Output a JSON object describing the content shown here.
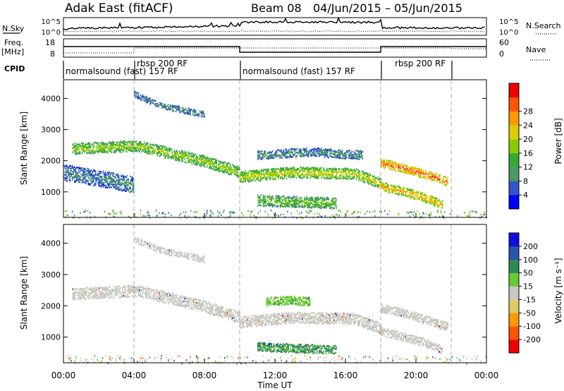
{
  "header": {
    "station": "Adak East (fitACF)",
    "beam": "Beam 08",
    "date_range": "04/Jun/2015 – 05/Jun/2015"
  },
  "noise_panel": {
    "left_label": "N.Sky",
    "right_label": "N.Search",
    "left_ticks": [
      "10^5",
      "10^0"
    ],
    "right_ticks": [
      "10^5",
      "10^0"
    ]
  },
  "freq_panel": {
    "left_label_1": "Freq.",
    "left_label_2": "[MHz]",
    "left_ticks": [
      "18",
      "8"
    ],
    "right_label": "Nave",
    "right_ticks": [
      "60",
      "0"
    ]
  },
  "cpid_panel": {
    "label": "CPID",
    "programs": [
      {
        "name": "normalsound (fast) 157 RF"
      },
      {
        "name": "rbsp 200 RF"
      },
      {
        "name": "normalsound (fast) 157 RF"
      },
      {
        "name": "rbsp 200 RF"
      }
    ]
  },
  "colors": {
    "power_scale": [
      "#0000ff",
      "#3355cc",
      "#4d9966",
      "#33aa33",
      "#88cc00",
      "#ddcc00",
      "#ff9900",
      "#ff5500",
      "#ee0000"
    ],
    "velocity_scale": [
      "#ee0000",
      "#ff5500",
      "#ff9900",
      "#ddcc66",
      "#c8c8c0",
      "#66cc33",
      "#2d8a55",
      "#2a55aa",
      "#1010dd"
    ]
  },
  "chart_data": [
    {
      "type": "heatmap",
      "title": "",
      "xlabel": "",
      "ylabel": "Slant Range [km]",
      "colorbar_label": "Power [dB]",
      "colorbar_ticks": [
        "4",
        "8",
        "12",
        "16",
        "20",
        "24",
        "28"
      ],
      "xlim": [
        "00:00",
        "00:00"
      ],
      "ylim": [
        180,
        4600
      ],
      "x_ticks": [
        "00:00",
        "04:00",
        "08:00",
        "12:00",
        "16:00",
        "20:00",
        "00:00"
      ],
      "y_ticks": [
        1000,
        2000,
        3000,
        4000
      ],
      "x_unit": "hours UT",
      "features": [
        {
          "x": [
            0.5,
            4.2,
            8.0,
            10.0
          ],
          "y": [
            2400,
            2500,
            2000,
            1650
          ],
          "width": 140,
          "value": 16
        },
        {
          "x": [
            10.0,
            13.0,
            16.5,
            18.0
          ],
          "y": [
            1500,
            1650,
            1600,
            1300
          ],
          "width": 150,
          "value": 18
        },
        {
          "x": [
            18.0,
            19.5,
            21.0,
            21.8
          ],
          "y": [
            1950,
            1750,
            1500,
            1350
          ],
          "width": 130,
          "value": 26
        },
        {
          "x": [
            18.0,
            19.5,
            20.7,
            21.5
          ],
          "y": [
            1200,
            1000,
            800,
            600
          ],
          "width": 110,
          "value": 22
        },
        {
          "x": [
            11.0,
            13.0,
            15.5
          ],
          "y": [
            750,
            700,
            650
          ],
          "width": 140,
          "value": 14
        },
        {
          "x": [
            4.0,
            5.5,
            8.0
          ],
          "y": [
            4150,
            3800,
            3500
          ],
          "width": 90,
          "value": 8
        },
        {
          "x": [
            0.0,
            2.0,
            4.0
          ],
          "y": [
            1650,
            1450,
            1250
          ],
          "width": 250,
          "value": 8
        },
        {
          "x": [
            11.0,
            14.0,
            17.0
          ],
          "y": [
            2200,
            2300,
            2200
          ],
          "width": 110,
          "value": 9
        }
      ]
    },
    {
      "type": "heatmap",
      "title": "",
      "xlabel": "Time UT",
      "ylabel": "Slant Range [km]",
      "colorbar_label": "Velocity [m s⁻¹]",
      "colorbar_ticks": [
        "-200",
        "-100",
        "-50",
        "-15",
        "15",
        "50",
        "100",
        "200"
      ],
      "xlim": [
        "00:00",
        "00:00"
      ],
      "ylim": [
        180,
        4600
      ],
      "x_ticks": [
        "00:00",
        "04:00",
        "08:00",
        "12:00",
        "16:00",
        "20:00",
        "00:00"
      ],
      "y_ticks": [
        1000,
        2000,
        3000,
        4000
      ],
      "x_unit": "hours UT",
      "features": [
        {
          "x": [
            0.5,
            4.2,
            8.0,
            10.0
          ],
          "y": [
            2400,
            2500,
            2000,
            1650
          ],
          "width": 140,
          "value": 0
        },
        {
          "x": [
            10.0,
            13.0,
            16.5,
            18.0
          ],
          "y": [
            1500,
            1650,
            1600,
            1300
          ],
          "width": 150,
          "value": 0
        },
        {
          "x": [
            18.0,
            19.5,
            21.0,
            21.8
          ],
          "y": [
            1950,
            1750,
            1500,
            1350
          ],
          "width": 130,
          "value": 0
        },
        {
          "x": [
            18.0,
            19.5,
            20.7,
            21.5
          ],
          "y": [
            1200,
            1000,
            800,
            600
          ],
          "width": 110,
          "value": 0
        },
        {
          "x": [
            11.0,
            13.0,
            15.5
          ],
          "y": [
            720,
            660,
            620
          ],
          "width": 130,
          "value": 60
        },
        {
          "x": [
            11.5,
            13.0,
            14.0
          ],
          "y": [
            2150,
            2200,
            2150
          ],
          "width": 100,
          "value": 40
        },
        {
          "x": [
            4.0,
            5.5,
            8.0
          ],
          "y": [
            4150,
            3800,
            3500
          ],
          "width": 90,
          "value": 0
        }
      ]
    }
  ]
}
